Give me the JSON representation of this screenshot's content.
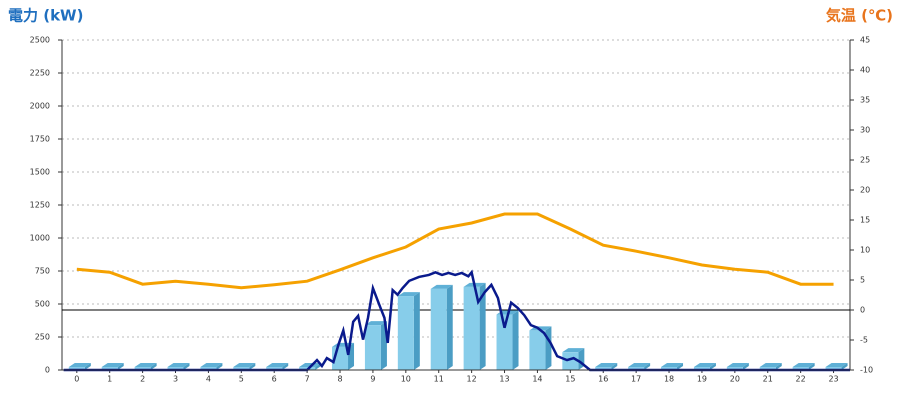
{
  "chart_data": {
    "type": "bar-line",
    "title_left": "電力 (kW)",
    "title_left_color": "#1f6fbf",
    "title_right": "気温 (℃)",
    "title_right_color": "#e8741c",
    "xlim": [
      -0.45,
      23.5
    ],
    "xticks": [
      0,
      1,
      2,
      3,
      4,
      5,
      6,
      7,
      8,
      9,
      10,
      11,
      12,
      13,
      14,
      15,
      16,
      17,
      18,
      19,
      20,
      21,
      22,
      23
    ],
    "ylim": [
      0,
      2500
    ],
    "yticks": [
      0,
      250,
      500,
      750,
      1000,
      1250,
      1500,
      1750,
      2000,
      2250,
      2500
    ],
    "y2lim": [
      -10,
      45
    ],
    "y2ticks": [
      -10,
      -5,
      0,
      5,
      10,
      15,
      20,
      25,
      30,
      35,
      40,
      45
    ],
    "grid": true,
    "y2_zero_line": true,
    "series": [
      {
        "kind": "bar",
        "color": "#87cdea",
        "x": [
          0,
          1,
          2,
          3,
          4,
          5,
          6,
          7,
          8,
          9,
          10,
          11,
          12,
          13,
          14,
          15,
          16,
          17,
          18,
          19,
          20,
          21,
          22,
          23
        ],
        "values": [
          0,
          0,
          0,
          0,
          0,
          0,
          0,
          0,
          175,
          340,
          560,
          615,
          630,
          420,
          300,
          135,
          0,
          0,
          0,
          0,
          0,
          0,
          0,
          0
        ]
      },
      {
        "kind": "line",
        "color": "#0a1a8c",
        "x": [
          -0.4,
          7.0,
          7.3,
          7.45,
          7.6,
          7.8,
          7.95,
          8.1,
          8.25,
          8.4,
          8.55,
          8.7,
          8.85,
          9.0,
          9.2,
          9.35,
          9.45,
          9.6,
          9.75,
          9.9,
          10.1,
          10.4,
          10.7,
          10.9,
          11.1,
          11.3,
          11.5,
          11.7,
          11.9,
          12.0,
          12.2,
          12.4,
          12.6,
          12.8,
          13.0,
          13.2,
          13.4,
          13.6,
          13.8,
          14.0,
          14.2,
          14.4,
          14.6,
          14.9,
          15.1,
          15.3,
          15.6,
          23.5
        ],
        "values": [
          0,
          0,
          75,
          30,
          90,
          60,
          190,
          300,
          115,
          365,
          410,
          230,
          395,
          620,
          490,
          395,
          205,
          605,
          570,
          620,
          675,
          705,
          720,
          740,
          720,
          735,
          720,
          735,
          710,
          740,
          515,
          590,
          645,
          545,
          320,
          510,
          470,
          415,
          340,
          320,
          280,
          205,
          105,
          75,
          90,
          60,
          0,
          0
        ]
      },
      {
        "kind": "line",
        "axis": "y2",
        "color": "#f5a100",
        "x": [
          0,
          1,
          2,
          3,
          4,
          5,
          6,
          7,
          8,
          9,
          10,
          11,
          12,
          13,
          14,
          15,
          16,
          17,
          18,
          19,
          20,
          21,
          22,
          23
        ],
        "values": [
          6.8,
          6.3,
          4.3,
          4.8,
          4.3,
          3.7,
          4.2,
          4.8,
          6.7,
          8.7,
          10.5,
          13.5,
          14.5,
          16,
          16,
          13.5,
          10.8,
          9.8,
          8.7,
          7.5,
          6.8,
          6.3,
          4.3,
          4.3
        ]
      }
    ]
  }
}
